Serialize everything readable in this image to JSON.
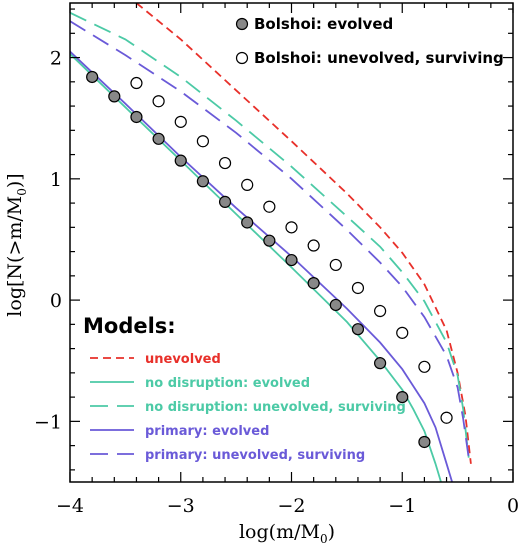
{
  "chart_data": {
    "type": "line",
    "xlabel": "log(m/M",
    "xlabel_sub": "0",
    "xlabel_close": ")",
    "ylabel": "log[N(>m/M",
    "ylabel_sub": "0",
    "ylabel_close": ")]",
    "xlim": [
      -4,
      0
    ],
    "ylim": [
      -1.5,
      2.45
    ],
    "xticks": [
      -4,
      -3,
      -2,
      -1,
      0
    ],
    "xtick_labels": [
      "−4",
      "−3",
      "−2",
      "−1",
      "0"
    ],
    "yticks": [
      -1,
      0,
      1,
      2
    ],
    "ytick_labels": [
      "−1",
      "0",
      "1",
      "2"
    ],
    "legend_points": [
      {
        "label": "Bolshoi: evolved",
        "fill": "#888888"
      },
      {
        "label": "Bolshoi: unevolved, surviving",
        "fill": "#ffffff"
      }
    ],
    "models_title": "Models:",
    "scatter": [
      {
        "name": "Bolshoi: evolved",
        "fill": "#888888",
        "x": [
          -3.8,
          -3.6,
          -3.4,
          -3.2,
          -3.0,
          -2.8,
          -2.6,
          -2.4,
          -2.2,
          -2.0,
          -1.8,
          -1.6,
          -1.4,
          -1.2,
          -1.0,
          -0.8
        ],
        "y": [
          1.84,
          1.68,
          1.51,
          1.33,
          1.15,
          0.98,
          0.81,
          0.64,
          0.49,
          0.33,
          0.14,
          -0.04,
          -0.24,
          -0.52,
          -0.8,
          -1.17
        ]
      },
      {
        "name": "Bolshoi: unevolved, surviving",
        "fill": "#ffffff",
        "x": [
          -3.4,
          -3.2,
          -3.0,
          -2.8,
          -2.6,
          -2.4,
          -2.2,
          -2.0,
          -1.8,
          -1.6,
          -1.4,
          -1.2,
          -1.0,
          -0.8,
          -0.6
        ],
        "y": [
          1.79,
          1.64,
          1.47,
          1.31,
          1.13,
          0.95,
          0.77,
          0.6,
          0.45,
          0.29,
          0.1,
          -0.09,
          -0.27,
          -0.55,
          -0.97
        ]
      }
    ],
    "series": [
      {
        "name": "unevolved",
        "color": "#e8302a",
        "dash": "short",
        "x": [
          -3.4,
          -3.0,
          -2.5,
          -2.0,
          -1.5,
          -1.2,
          -1.0,
          -0.8,
          -0.6,
          -0.5,
          -0.43,
          -0.38
        ],
        "y": [
          2.45,
          2.15,
          1.73,
          1.31,
          0.88,
          0.6,
          0.39,
          0.13,
          -0.25,
          -0.6,
          -0.95,
          -1.35
        ]
      },
      {
        "name": "no disruption: evolved",
        "color": "#4ccaa6",
        "dash": "solid",
        "x": [
          -4.0,
          -3.5,
          -3.0,
          -2.5,
          -2.0,
          -1.5,
          -1.2,
          -1.0,
          -0.9,
          -0.8,
          -0.7,
          -0.65
        ],
        "y": [
          2.03,
          1.59,
          1.15,
          0.71,
          0.27,
          -0.18,
          -0.5,
          -0.74,
          -0.9,
          -1.08,
          -1.35,
          -1.5
        ]
      },
      {
        "name": "no disruption: unevolved, surviving",
        "color": "#4ccaa6",
        "dash": "long",
        "x": [
          -4.0,
          -3.5,
          -3.0,
          -2.5,
          -2.0,
          -1.5,
          -1.2,
          -1.0,
          -0.8,
          -0.6,
          -0.5,
          -0.45,
          -0.4
        ],
        "y": [
          2.37,
          2.15,
          1.84,
          1.48,
          1.1,
          0.69,
          0.44,
          0.23,
          -0.01,
          -0.35,
          -0.62,
          -0.9,
          -1.3
        ]
      },
      {
        "name": "primary: evolved",
        "color": "#6a5ad8",
        "dash": "solid",
        "x": [
          -4.0,
          -3.5,
          -3.0,
          -2.5,
          -2.0,
          -1.5,
          -1.2,
          -1.0,
          -0.8,
          -0.7,
          -0.6,
          -0.55
        ],
        "y": [
          2.05,
          1.62,
          1.18,
          0.76,
          0.36,
          -0.07,
          -0.35,
          -0.57,
          -0.85,
          -1.05,
          -1.35,
          -1.5
        ]
      },
      {
        "name": "primary: unevolved, surviving",
        "color": "#6a5ad8",
        "dash": "long",
        "x": [
          -4.0,
          -3.5,
          -3.0,
          -2.5,
          -2.0,
          -1.5,
          -1.2,
          -1.0,
          -0.8,
          -0.6,
          -0.5,
          -0.45,
          -0.4
        ],
        "y": [
          2.3,
          2.02,
          1.72,
          1.38,
          1.0,
          0.58,
          0.31,
          0.11,
          -0.14,
          -0.46,
          -0.72,
          -0.98,
          -1.3
        ]
      }
    ]
  }
}
